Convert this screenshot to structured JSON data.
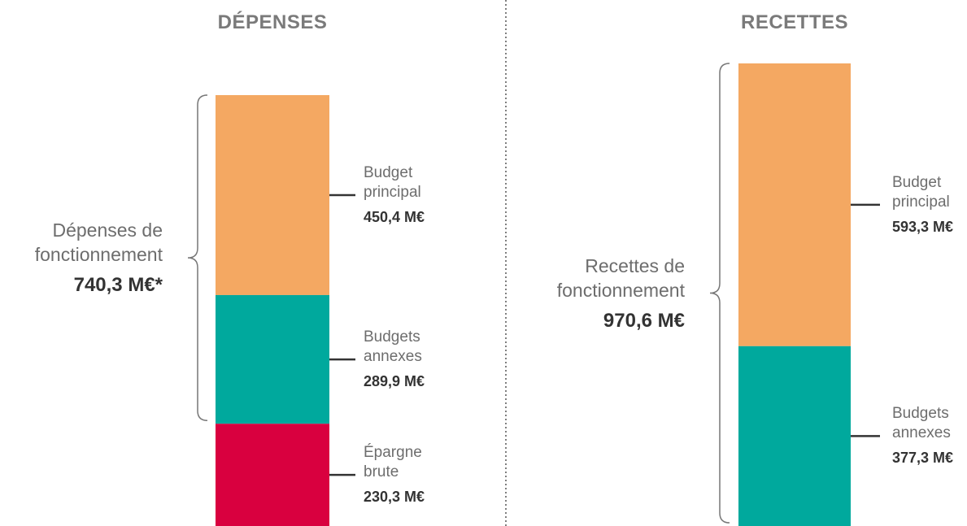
{
  "chart_data": [
    {
      "type": "stacked-bar",
      "title": "DÉPENSES",
      "series": [
        {
          "name": "Budget principal",
          "color": "#f4a862",
          "values": [
            450.4
          ],
          "value_labels": [
            "450,4 M€"
          ]
        },
        {
          "name": "Budgets annexes",
          "color": "#00a99d",
          "values": [
            289.9
          ],
          "value_labels": [
            "289,9 M€"
          ]
        },
        {
          "name": "Épargne brute",
          "color": "#d9003f",
          "values": [
            230.3
          ],
          "value_labels": [
            "230,3 M€"
          ]
        }
      ],
      "bracket": {
        "label": "Dépenses de fonctionnement",
        "value": 740.3,
        "value_label": "740,3 M€*"
      }
    },
    {
      "type": "stacked-bar",
      "title": "RECETTES",
      "series": [
        {
          "name": "Budget principal",
          "color": "#f4a862",
          "values": [
            593.3
          ],
          "value_labels": [
            "593,3 M€"
          ]
        },
        {
          "name": "Budgets annexes",
          "color": "#00a99d",
          "values": [
            377.3
          ],
          "value_labels": [
            "377,3 M€"
          ]
        }
      ],
      "bracket": {
        "label": "Recettes de fonctionnement",
        "value": 970.6,
        "value_label": "970,6 M€"
      }
    }
  ]
}
